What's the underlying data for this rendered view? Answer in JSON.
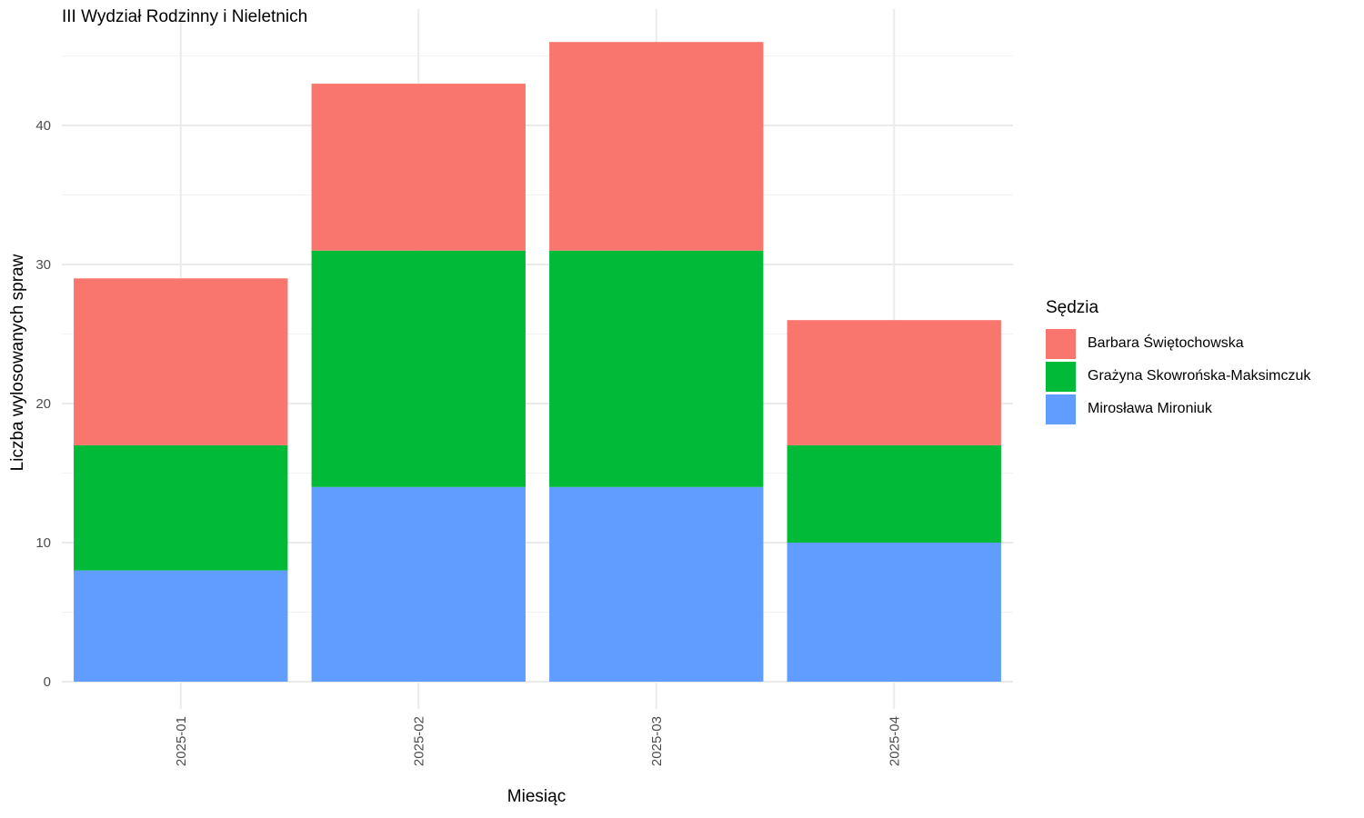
{
  "chart_data": {
    "type": "bar",
    "stacked": true,
    "title": "III Wydział Rodzinny i Nieletnich",
    "xlabel": "Miesiąc",
    "ylabel": "Liczba wylosowanych spraw",
    "categories": [
      "2025-01",
      "2025-02",
      "2025-03",
      "2025-04"
    ],
    "ylim": [
      0,
      48
    ],
    "yticks": [
      0,
      10,
      20,
      30,
      40
    ],
    "grid": true,
    "legend_title": "Sędzia",
    "legend_position": "right",
    "series": [
      {
        "name": "Mirosława Mironiuk",
        "color": "#619CFF",
        "values": [
          8,
          14,
          14,
          10
        ]
      },
      {
        "name": "Grażyna Skowrońska-Maksimczuk",
        "color": "#00BA38",
        "values": [
          9,
          17,
          17,
          7
        ]
      },
      {
        "name": "Barbara Świętochowska",
        "color": "#F8766D",
        "values": [
          12,
          12,
          15,
          9
        ]
      }
    ],
    "legend_order": [
      2,
      1,
      0
    ]
  }
}
